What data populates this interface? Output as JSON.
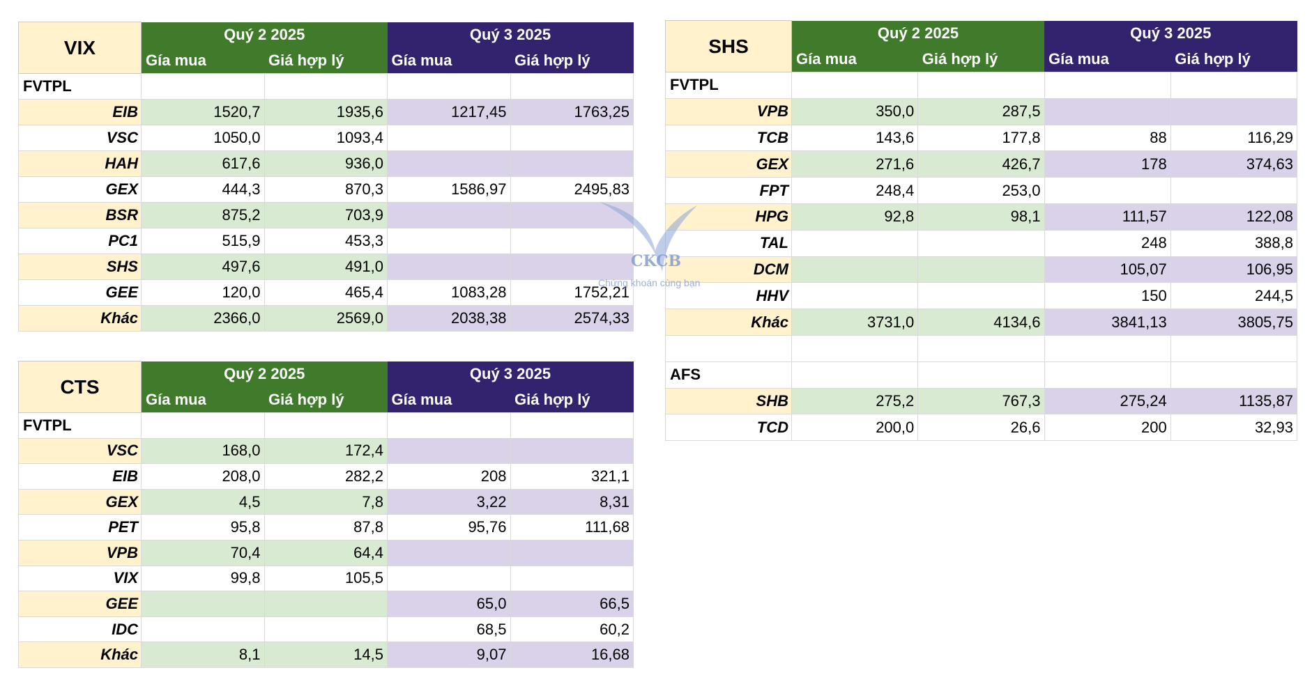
{
  "columns": {
    "q2": "Quý 2 2025",
    "q3": "Quý 3 2025",
    "buy": "Gía mua",
    "fair": "Giá hợp lý"
  },
  "watermark": {
    "logo": "CKCB",
    "tagline": "Chứng khoán cùng bạn"
  },
  "tables": {
    "vix": {
      "name": "VIX",
      "sections": [
        {
          "label": "FVTPL",
          "rows": [
            {
              "t": "EIB",
              "q2b": "1520,7",
              "q2f": "1935,6",
              "q3b": "1217,45",
              "q3f": "1763,25"
            },
            {
              "t": "VSC",
              "q2b": "1050,0",
              "q2f": "1093,4",
              "q3b": "",
              "q3f": ""
            },
            {
              "t": "HAH",
              "q2b": "617,6",
              "q2f": "936,0",
              "q3b": "",
              "q3f": ""
            },
            {
              "t": "GEX",
              "q2b": "444,3",
              "q2f": "870,3",
              "q3b": "1586,97",
              "q3f": "2495,83"
            },
            {
              "t": "BSR",
              "q2b": "875,2",
              "q2f": "703,9",
              "q3b": "",
              "q3f": ""
            },
            {
              "t": "PC1",
              "q2b": "515,9",
              "q2f": "453,3",
              "q3b": "",
              "q3f": ""
            },
            {
              "t": "SHS",
              "q2b": "497,6",
              "q2f": "491,0",
              "q3b": "",
              "q3f": ""
            },
            {
              "t": "GEE",
              "q2b": "120,0",
              "q2f": "465,4",
              "q3b": "1083,28",
              "q3f": "1752,21"
            },
            {
              "t": "Khác",
              "q2b": "2366,0",
              "q2f": "2569,0",
              "q3b": "2038,38",
              "q3f": "2574,33"
            }
          ]
        }
      ]
    },
    "cts": {
      "name": "CTS",
      "sections": [
        {
          "label": "FVTPL",
          "rows": [
            {
              "t": "VSC",
              "q2b": "168,0",
              "q2f": "172,4",
              "q3b": "",
              "q3f": ""
            },
            {
              "t": "EIB",
              "q2b": "208,0",
              "q2f": "282,2",
              "q3b": "208",
              "q3f": "321,1"
            },
            {
              "t": "GEX",
              "q2b": "4,5",
              "q2f": "7,8",
              "q3b": "3,22",
              "q3f": "8,31"
            },
            {
              "t": "PET",
              "q2b": "95,8",
              "q2f": "87,8",
              "q3b": "95,76",
              "q3f": "111,68"
            },
            {
              "t": "VPB",
              "q2b": "70,4",
              "q2f": "64,4",
              "q3b": "",
              "q3f": ""
            },
            {
              "t": "VIX",
              "q2b": "99,8",
              "q2f": "105,5",
              "q3b": "",
              "q3f": ""
            },
            {
              "t": "GEE",
              "q2b": "",
              "q2f": "",
              "q3b": "65,0",
              "q3f": "66,5"
            },
            {
              "t": "IDC",
              "q2b": "",
              "q2f": "",
              "q3b": "68,5",
              "q3f": "60,2"
            },
            {
              "t": "Khác",
              "q2b": "8,1",
              "q2f": "14,5",
              "q3b": "9,07",
              "q3f": "16,68"
            }
          ]
        }
      ]
    },
    "shs": {
      "name": "SHS",
      "sections": [
        {
          "label": "FVTPL",
          "rows": [
            {
              "t": "VPB",
              "q2b": "350,0",
              "q2f": "287,5",
              "q3b": "",
              "q3f": ""
            },
            {
              "t": "TCB",
              "q2b": "143,6",
              "q2f": "177,8",
              "q3b": "88",
              "q3f": "116,29"
            },
            {
              "t": "GEX",
              "q2b": "271,6",
              "q2f": "426,7",
              "q3b": "178",
              "q3f": "374,63"
            },
            {
              "t": "FPT",
              "q2b": "248,4",
              "q2f": "253,0",
              "q3b": "",
              "q3f": ""
            },
            {
              "t": "HPG",
              "q2b": "92,8",
              "q2f": "98,1",
              "q3b": "111,57",
              "q3f": "122,08"
            },
            {
              "t": "TAL",
              "q2b": "",
              "q2f": "",
              "q3b": "248",
              "q3f": "388,8"
            },
            {
              "t": "DCM",
              "q2b": "",
              "q2f": "",
              "q3b": "105,07",
              "q3f": "106,95"
            },
            {
              "t": "HHV",
              "q2b": "",
              "q2f": "",
              "q3b": "150",
              "q3f": "244,5"
            },
            {
              "t": "Khác",
              "q2b": "3731,0",
              "q2f": "4134,6",
              "q3b": "3841,13",
              "q3f": "3805,75"
            }
          ]
        },
        {
          "label": "AFS",
          "rows": [
            {
              "t": "SHB",
              "q2b": "275,2",
              "q2f": "767,3",
              "q3b": "275,24",
              "q3f": "1135,87"
            },
            {
              "t": "TCD",
              "q2b": "200,0",
              "q2f": "26,6",
              "q3b": "200",
              "q3f": "32,93"
            }
          ]
        }
      ]
    }
  }
}
